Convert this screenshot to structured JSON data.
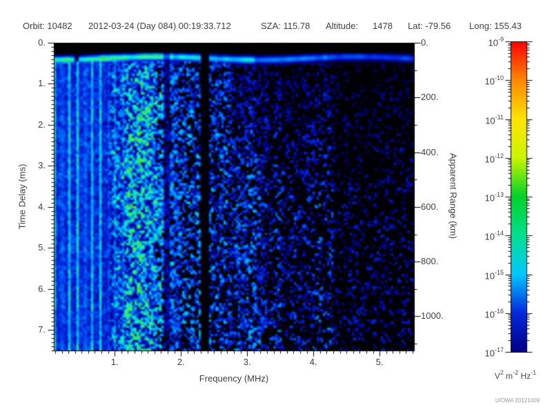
{
  "header": {
    "orbit": "Orbit: 10482",
    "datetime": "2012-03-24 (Day 084) 00:19:33.712",
    "sza": "SZA: 115.78",
    "altitude_label": "Altitude:",
    "altitude_value": "1478",
    "lat": "Lat: -79.56",
    "long": "Long: 155.43"
  },
  "chart_data": {
    "type": "heatmap",
    "description": "Radar sounder ionogram spectrogram: signal spectral density vs frequency and time delay",
    "xlabel": "Frequency (MHz)",
    "ylabel_left": "Time Delay (ms)",
    "ylabel_right": "Apparent Range (km)",
    "x_range_mhz": [
      0.08,
      5.52
    ],
    "x_major_ticks": [
      1,
      2,
      3,
      4,
      5
    ],
    "x_tick_labels": [
      "1.",
      "2.",
      "3.",
      "4.",
      "5."
    ],
    "x_minor_step_mhz": 0.1,
    "y_range_ms": [
      0,
      7.5
    ],
    "y_major_ticks_ms": [
      0,
      1,
      2,
      3,
      4,
      5,
      6,
      7
    ],
    "y_tick_labels": [
      "0.",
      "1.",
      "2.",
      "3.",
      "4.",
      "5.",
      "6.",
      "7."
    ],
    "y_minor_step_ms": 0.1,
    "right_axis_km_per_ms": 150,
    "right_major_ticks_km": [
      0,
      200,
      400,
      600,
      800,
      1000
    ],
    "right_tick_labels": [
      "0.",
      "200.",
      "400.",
      "600.",
      "800.",
      "1000."
    ],
    "right_minor_step_km": 100,
    "grid": false,
    "colorbar": {
      "scale": "log10",
      "max": "1e-9",
      "min": "1e-17",
      "decade_exponents": [
        -9,
        -10,
        -11,
        -12,
        -13,
        -14,
        -15,
        -16,
        -17
      ],
      "units_parts": [
        [
          "V",
          "2"
        ],
        [
          "m",
          "-2"
        ],
        [
          "Hz",
          "-1"
        ]
      ],
      "stops": [
        {
          "exp": -9,
          "color": "#ff0000"
        },
        {
          "exp": -10,
          "color": "#ff8800"
        },
        {
          "exp": -11,
          "color": "#ffe400"
        },
        {
          "exp": -12,
          "color": "#ccf500"
        },
        {
          "exp": -13,
          "color": "#00d22a"
        },
        {
          "exp": -14,
          "color": "#00e090"
        },
        {
          "exp": -15,
          "color": "#00c8ff"
        },
        {
          "exp": -16,
          "color": "#0028dd"
        },
        {
          "exp": -17,
          "color": "#000088"
        }
      ]
    },
    "features": {
      "seed": 20121009,
      "top_blank_ms": [
        0,
        0.25
      ],
      "surface_echo_band_ms": [
        0.25,
        0.55
      ],
      "plasma_harmonic_start_mhz": 0.09,
      "plasma_harmonic_spacing_mhz": 0.115,
      "plasma_harmonics_visible_to_mhz": 1.6,
      "ionosphere_echo_peak_mhz": 1.35,
      "dropout_band_mhz": [
        2.31,
        2.44
      ],
      "weak_band_mhz": [
        1.73,
        1.83
      ],
      "echo_fade_above_mhz": 3.3,
      "sparse_above_mhz": 4.3,
      "plot_colormap_stops": [
        {
          "v": 0.0,
          "color": "#000000"
        },
        {
          "v": 0.14,
          "color": "#000090"
        },
        {
          "v": 0.32,
          "color": "#0030e8"
        },
        {
          "v": 0.52,
          "color": "#00a0ff"
        },
        {
          "v": 0.68,
          "color": "#00e8e0"
        },
        {
          "v": 0.82,
          "color": "#3cf07a"
        },
        {
          "v": 1.0,
          "color": "#30e050"
        }
      ]
    }
  },
  "footer": {
    "attribution": "UIOWA 20121009"
  }
}
